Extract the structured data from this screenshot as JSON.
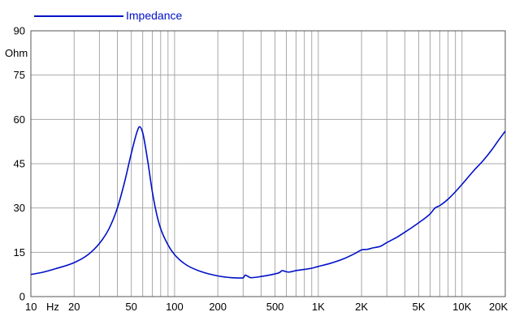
{
  "chart_data": {
    "type": "line",
    "title": "",
    "xlabel": "Hz",
    "ylabel": "Ohm",
    "xscale": "log",
    "xlim": [
      10,
      20000
    ],
    "ylim": [
      0,
      90
    ],
    "grid": true,
    "legend_position": "top-left",
    "y_ticks": [
      "0",
      "15",
      "30",
      "45",
      "60",
      "75",
      "90"
    ],
    "x_tick_labels": [
      {
        "value": 10,
        "label": "10"
      },
      {
        "value": 20,
        "label": "20"
      },
      {
        "value": 50,
        "label": "50"
      },
      {
        "value": 100,
        "label": "100"
      },
      {
        "value": 200,
        "label": "200"
      },
      {
        "value": 500,
        "label": "500"
      },
      {
        "value": 1000,
        "label": "1K"
      },
      {
        "value": 2000,
        "label": "2K"
      },
      {
        "value": 5000,
        "label": "5K"
      },
      {
        "value": 10000,
        "label": "10K"
      },
      {
        "value": 20000,
        "label": "20K"
      }
    ],
    "series": [
      {
        "name": "Impedance",
        "color": "#0010c8",
        "points": [
          [
            10,
            7.5
          ],
          [
            12,
            8.2
          ],
          [
            15,
            9.5
          ],
          [
            20,
            11.5
          ],
          [
            25,
            14.2
          ],
          [
            30,
            18
          ],
          [
            35,
            23
          ],
          [
            40,
            30
          ],
          [
            45,
            39
          ],
          [
            50,
            48.5
          ],
          [
            55,
            56
          ],
          [
            57,
            57.5
          ],
          [
            60,
            55.5
          ],
          [
            65,
            46
          ],
          [
            70,
            35.5
          ],
          [
            75,
            28
          ],
          [
            80,
            23
          ],
          [
            90,
            17.5
          ],
          [
            100,
            14.2
          ],
          [
            120,
            10.8
          ],
          [
            150,
            8.6
          ],
          [
            200,
            7.0
          ],
          [
            250,
            6.4
          ],
          [
            280,
            6.3
          ],
          [
            300,
            6.3
          ],
          [
            310,
            7.3
          ],
          [
            320,
            7.0
          ],
          [
            340,
            6.4
          ],
          [
            400,
            6.8
          ],
          [
            480,
            7.5
          ],
          [
            540,
            8.2
          ],
          [
            560,
            8.8
          ],
          [
            590,
            8.5
          ],
          [
            620,
            8.3
          ],
          [
            700,
            8.8
          ],
          [
            800,
            9.2
          ],
          [
            900,
            9.6
          ],
          [
            1000,
            10.2
          ],
          [
            1200,
            11.2
          ],
          [
            1500,
            12.8
          ],
          [
            1800,
            14.6
          ],
          [
            2000,
            15.8
          ],
          [
            2200,
            16.0
          ],
          [
            2400,
            16.5
          ],
          [
            2700,
            17.0
          ],
          [
            3000,
            18.3
          ],
          [
            3500,
            20.0
          ],
          [
            4000,
            21.8
          ],
          [
            5000,
            25.0
          ],
          [
            6000,
            28.0
          ],
          [
            6500,
            30.0
          ],
          [
            7000,
            30.8
          ],
          [
            8000,
            33.0
          ],
          [
            9000,
            35.5
          ],
          [
            10000,
            38.0
          ],
          [
            12000,
            42.5
          ],
          [
            14000,
            46.0
          ],
          [
            16000,
            49.5
          ],
          [
            18000,
            53.0
          ],
          [
            20000,
            56.0
          ]
        ]
      }
    ]
  }
}
